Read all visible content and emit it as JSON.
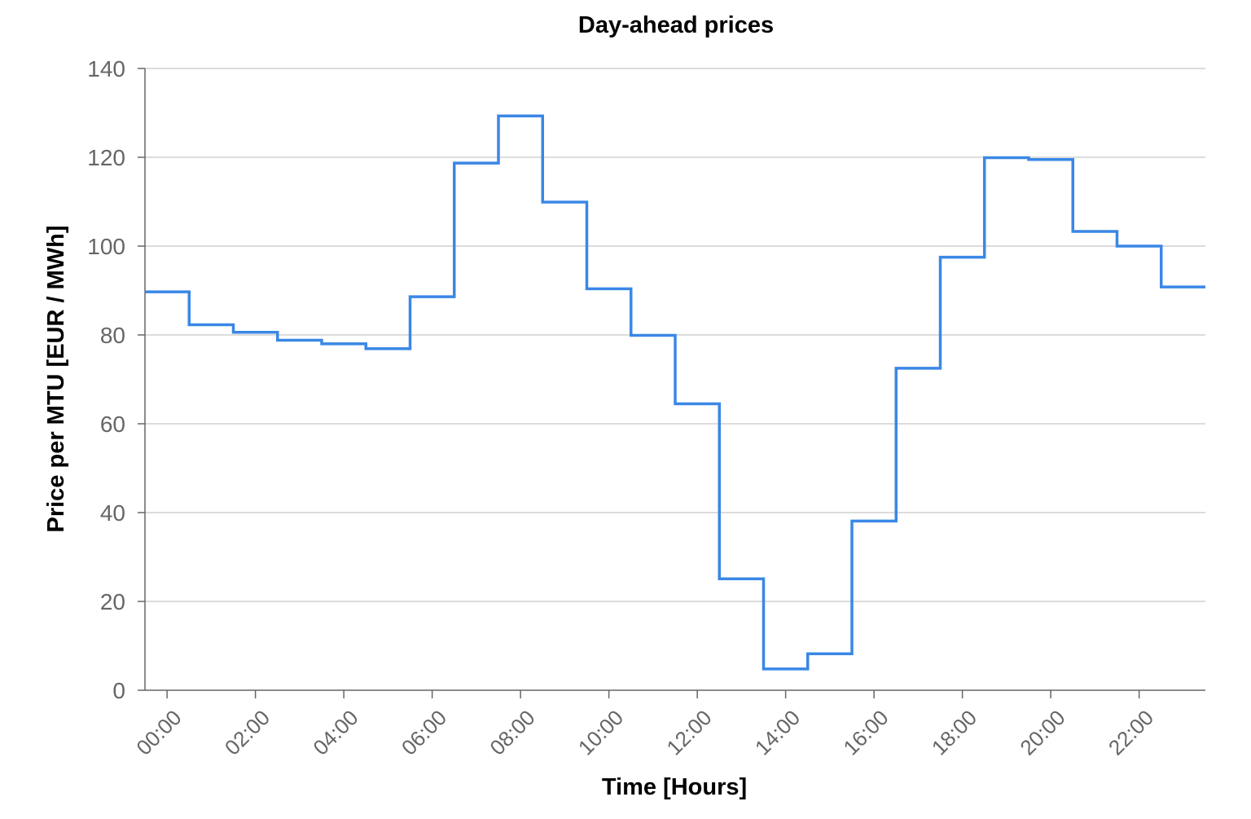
{
  "chart_data": {
    "type": "line",
    "step": "mid",
    "title": "Day-ahead prices",
    "xlabel": "Time [Hours]",
    "ylabel": "Price per MTU [EUR / MWh]",
    "ylim": [
      0,
      140
    ],
    "yticks": [
      0,
      20,
      40,
      60,
      80,
      100,
      120,
      140
    ],
    "xlim": [
      -0.5,
      23.5
    ],
    "xticks": [
      "00:00",
      "02:00",
      "04:00",
      "06:00",
      "08:00",
      "10:00",
      "12:00",
      "14:00",
      "16:00",
      "18:00",
      "20:00",
      "22:00"
    ],
    "grid": true,
    "colors": {
      "series": "#3a87e6",
      "grid": "#d0d0d0",
      "axis": "#666666"
    },
    "series": [
      {
        "x": [
          "00:00",
          "01:00",
          "02:00",
          "03:00",
          "04:00",
          "05:00",
          "06:00",
          "07:00",
          "08:00",
          "09:00",
          "10:00",
          "11:00",
          "12:00",
          "13:00",
          "14:00",
          "15:00",
          "16:00",
          "17:00",
          "18:00",
          "19:00",
          "20:00",
          "21:00",
          "22:00",
          "23:00"
        ],
        "values": [
          89.7,
          82.3,
          80.6,
          78.8,
          78.0,
          76.9,
          88.6,
          118.7,
          129.3,
          109.9,
          90.4,
          79.9,
          64.5,
          25.1,
          4.8,
          8.2,
          38.1,
          72.5,
          97.5,
          119.9,
          119.5,
          103.3,
          100.0,
          90.8
        ]
      }
    ]
  }
}
